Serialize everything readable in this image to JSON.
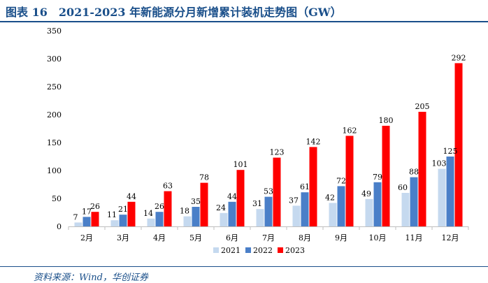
{
  "title": "图表 16　2021-2023 年新能源分月新增累计装机走势图（GW）",
  "source": "资料来源：Wind，华创证券",
  "colors": {
    "title": "#1a4f8a",
    "s2021": "#c5d9ef",
    "s2022": "#4a7fc8",
    "s2023": "#ff0000"
  },
  "chart_data": {
    "type": "bar",
    "categories": [
      "2月",
      "3月",
      "4月",
      "5月",
      "6月",
      "7月",
      "8月",
      "9月",
      "10月",
      "11月",
      "12月"
    ],
    "series": [
      {
        "name": "2021",
        "values": [
          7,
          11,
          14,
          18,
          24,
          31,
          37,
          42,
          49,
          60,
          103
        ]
      },
      {
        "name": "2022",
        "values": [
          17,
          21,
          26,
          35,
          44,
          53,
          61,
          72,
          79,
          88,
          125
        ]
      },
      {
        "name": "2023",
        "values": [
          26,
          44,
          63,
          78,
          101,
          123,
          142,
          162,
          180,
          205,
          292
        ]
      }
    ],
    "ylim": [
      0,
      350
    ],
    "yticks": [
      0,
      50,
      100,
      150,
      200,
      250,
      300,
      350
    ],
    "legend": "bottom",
    "grid": false
  }
}
